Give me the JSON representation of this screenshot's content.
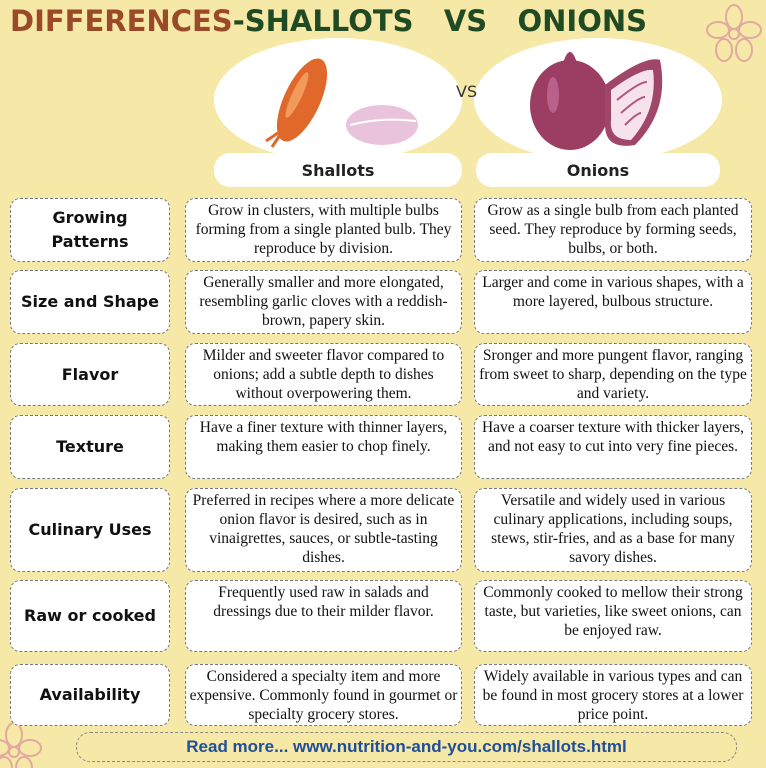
{
  "title": {
    "part1": "DIFFERENCES",
    "part2": "-SHALLOTS   VS   ONIONS"
  },
  "vs_label": "VS",
  "columns": [
    "Shallots",
    "Onions"
  ],
  "rows": [
    {
      "label": "Growing Patterns",
      "shallots": "Grow in clusters, with multiple bulbs forming from a single planted bulb. They reproduce by division.",
      "onions": "Grow as a single bulb from each planted seed. They reproduce by forming seeds, bulbs, or both."
    },
    {
      "label": "Size and Shape",
      "shallots": "Generally smaller and more elongated, resembling garlic cloves with a reddish-brown, papery skin.",
      "onions": "Larger and come in various shapes, with a more layered, bulbous structure."
    },
    {
      "label": "Flavor",
      "shallots": "Milder and sweeter flavor compared to onions; add a subtle depth to dishes without overpowering them.",
      "onions": "Sronger and more pungent flavor, ranging from sweet to sharp, depending on the type and variety."
    },
    {
      "label": "Texture",
      "shallots": "Have a finer texture with thinner layers, making them easier to chop finely.",
      "onions": "Have a coarser texture with thicker layers, and not easy to cut into very fine pieces."
    },
    {
      "label": "Culinary Uses",
      "shallots": "Preferred in recipes where a more delicate onion flavor is desired, such as in vinaigrettes, sauces, or subtle-tasting dishes.",
      "onions": "Versatile and widely used in various culinary applications, including soups, stews, stir-fries, and as a base for many savory dishes."
    },
    {
      "label": "Raw or cooked",
      "shallots": "Frequently used raw in salads and dressings due to their milder flavor.",
      "onions": "Commonly cooked to mellow their strong taste, but varieties, like sweet onions, can be enjoyed raw."
    },
    {
      "label": "Availability",
      "shallots": "Considered a specialty item and more expensive. Commonly found in gourmet or specialty grocery stores.",
      "onions": "Widely available in various types and can be found in most grocery stores at a lower price point."
    }
  ],
  "footer": "Read more... www.nutrition-and-you.com/shallots.html",
  "colors": {
    "background": "#f6e8a6",
    "title_brown": "#9a4a28",
    "title_green": "#1f4a24",
    "link_blue": "#1f4e9a"
  }
}
